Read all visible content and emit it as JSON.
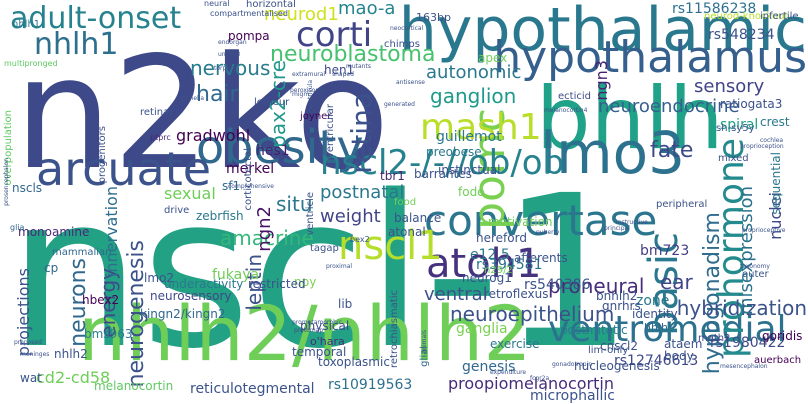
{
  "words": [
    {
      "text": "nscl-1",
      "color": "#22a184"
    },
    {
      "text": "n2ko",
      "color": "#3e4989"
    },
    {
      "text": "nhlh2/nhlh2",
      "color": "#6ece58"
    },
    {
      "text": "bhlh",
      "color": "#1fa287"
    },
    {
      "text": "hypothalamic",
      "color": "#2a788e"
    },
    {
      "text": "hypothalamus",
      "color": "#355f8d"
    },
    {
      "text": "lmo3",
      "color": "#2c718e"
    },
    {
      "text": "obesity",
      "color": "#31688e"
    },
    {
      "text": "arcuate",
      "color": "#3b528b"
    },
    {
      "text": "convertase",
      "color": "#2b758e"
    },
    {
      "text": "pomc",
      "color": "#7ad151"
    },
    {
      "text": "atoh1",
      "color": "#46327e"
    },
    {
      "text": "nscl1",
      "color": "#b5de2b"
    },
    {
      "text": "nscl2-/-//ob/ob",
      "color": "#26828e"
    },
    {
      "text": "mash1",
      "color": "#b8de29"
    },
    {
      "text": "ventromedial",
      "color": "#2c728e"
    },
    {
      "text": "prohormone",
      "color": "#238a8d"
    },
    {
      "text": "adult-onset",
      "color": "#26828e"
    },
    {
      "text": "nhlh1",
      "color": "#2d708e"
    },
    {
      "text": "corti",
      "color": "#414487"
    },
    {
      "text": "basic",
      "color": "#2a788e"
    },
    {
      "text": "neuroblastoma",
      "color": "#48c16e"
    },
    {
      "text": "retina",
      "color": "#3b528b"
    },
    {
      "text": "hypogonadism",
      "color": "#2f6c8e"
    },
    {
      "text": "neuroepithelium",
      "color": "#3b528b"
    },
    {
      "text": "neurod1",
      "color": "#d0e11c"
    },
    {
      "text": "mao-a",
      "color": "#25848e"
    },
    {
      "text": "autonomic",
      "color": "#2a788e"
    },
    {
      "text": "neuroendocrine",
      "color": "#355f8d"
    },
    {
      "text": "nervous",
      "color": "#287c8e"
    },
    {
      "text": "hair",
      "color": "#31688e"
    },
    {
      "text": "ganglion",
      "color": "#1f9a8a"
    },
    {
      "text": "sensory",
      "color": "#414487"
    },
    {
      "text": "pax2-cre",
      "color": "#1f988b"
    },
    {
      "text": "amacrine",
      "color": "#35b779"
    },
    {
      "text": "weight",
      "color": "#414487"
    },
    {
      "text": "postnatal",
      "color": "#2a788e"
    },
    {
      "text": "proneural",
      "color": "#472d7b"
    },
    {
      "text": "energy",
      "color": "#3e4a89"
    },
    {
      "text": "neurons",
      "color": "#31688e"
    },
    {
      "text": "neurogenesis",
      "color": "#3b528b"
    },
    {
      "text": "leptin",
      "color": "#3b528b"
    },
    {
      "text": "situ",
      "color": "#2a788e"
    },
    {
      "text": "ngn2",
      "color": "#471365"
    },
    {
      "text": "ngn3",
      "color": "#482173"
    },
    {
      "text": "fate",
      "color": "#3e4989"
    },
    {
      "text": "ear",
      "color": "#414487"
    },
    {
      "text": "zone",
      "color": "#2a788e"
    },
    {
      "text": "ventral",
      "color": "#3b528b"
    },
    {
      "text": "hybridization",
      "color": "#3b528b"
    },
    {
      "text": "misexpression",
      "color": "#2c728e"
    },
    {
      "text": "nuclei",
      "color": "#3e4989"
    },
    {
      "text": "ganglia",
      "color": "#7ad151"
    },
    {
      "text": "sexual",
      "color": "#6ece58"
    },
    {
      "text": "projections",
      "color": "#3b528b"
    },
    {
      "text": "innervation",
      "color": "#2e6e8e"
    },
    {
      "text": "gradwohl",
      "color": "#440154"
    },
    {
      "text": "merkel",
      "color": "#440154"
    },
    {
      "text": "hes1",
      "color": "#481f70"
    },
    {
      "text": "e12.5",
      "color": "#2a788e"
    },
    {
      "text": "rs540386",
      "color": "#3b528b"
    },
    {
      "text": "rs394581",
      "color": "#2c718e"
    },
    {
      "text": "bm723",
      "color": "#433d84"
    },
    {
      "text": "rs11586238",
      "color": "#2d708e"
    },
    {
      "text": "rs548234",
      "color": "#3b528b"
    },
    {
      "text": "rs1980422",
      "color": "#3e4989"
    },
    {
      "text": "rs12746613",
      "color": "#3e4989"
    },
    {
      "text": "rs10919563",
      "color": "#2d708e"
    },
    {
      "text": "proopiomelanocortin",
      "color": "#472c7a"
    },
    {
      "text": "reticulotegmental",
      "color": "#3b528b"
    },
    {
      "text": "microphallic",
      "color": "#3b528b"
    },
    {
      "text": "genesis",
      "color": "#31688e"
    },
    {
      "text": "cd2-cd58",
      "color": "#6ece58"
    },
    {
      "text": "melanocortin",
      "color": "#5ec962"
    },
    {
      "text": "nhlh2",
      "color": "#3b528b"
    },
    {
      "text": "wat",
      "color": "#3b528b"
    },
    {
      "text": "bms963",
      "color": "#287d8e"
    },
    {
      "text": "kingn2/kingn2",
      "color": "#31688e"
    },
    {
      "text": "neurosensory",
      "color": "#3e4989"
    },
    {
      "text": "lmo2",
      "color": "#3b528b"
    },
    {
      "text": "fukaya",
      "color": "#6ece58"
    },
    {
      "text": "hbex2",
      "color": "#440154"
    },
    {
      "text": "cp",
      "color": "#31688e"
    },
    {
      "text": "monoamine",
      "color": "#482878"
    },
    {
      "text": "nscls",
      "color": "#31688e"
    },
    {
      "text": "zebrfish",
      "color": "#2a788e"
    },
    {
      "text": "sf1",
      "color": "#31688e"
    },
    {
      "text": "tbr1",
      "color": "#482475"
    },
    {
      "text": "neurog1",
      "color": "#3b528b"
    },
    {
      "text": "hereford",
      "color": "#3b528b"
    },
    {
      "text": "physical",
      "color": "#3e4989"
    },
    {
      "text": "lib",
      "color": "#3b528b"
    },
    {
      "text": "npy",
      "color": "#7ad151"
    },
    {
      "text": "temporal",
      "color": "#3b528b"
    },
    {
      "text": "o'hara",
      "color": "#472d7b"
    },
    {
      "text": "exercise",
      "color": "#2a788e"
    },
    {
      "text": "postmitotic",
      "color": "#2a788e"
    },
    {
      "text": "ataem",
      "color": "#3b528b"
    },
    {
      "text": "hhlh",
      "color": "#31688e"
    },
    {
      "text": "body",
      "color": "#3b528b"
    },
    {
      "text": "goridis",
      "color": "#440154"
    },
    {
      "text": "auerbach",
      "color": "#440154"
    },
    {
      "text": "spiral",
      "color": "#1fa188"
    },
    {
      "text": "ratiogata3",
      "color": "#3b528b"
    },
    {
      "text": "crest",
      "color": "#2a788e"
    },
    {
      "text": "sequential",
      "color": "#2a788e"
    },
    {
      "text": "identity",
      "color": "#3b528b"
    },
    {
      "text": "gnrhrs",
      "color": "#3b528b"
    },
    {
      "text": "cnscl2",
      "color": "#3b528b"
    },
    {
      "text": "bnhlh2",
      "color": "#3b528b"
    },
    {
      "text": "ecticid",
      "color": "#3e4989"
    },
    {
      "text": "guillemot",
      "color": "#2a788e"
    },
    {
      "text": "preobese",
      "color": "#2a788e"
    },
    {
      "text": "instinctual",
      "color": "#3b528b"
    },
    {
      "text": "barrantes",
      "color": "#3b528b"
    },
    {
      "text": "balance",
      "color": "#3b528b"
    },
    {
      "text": "atonal",
      "color": "#3b528b"
    },
    {
      "text": "163bp",
      "color": "#3b528b"
    },
    {
      "text": "pompa",
      "color": "#440154"
    },
    {
      "text": "underactivity",
      "color": "#2a788e"
    },
    {
      "text": "restricted",
      "color": "#3b528b"
    },
    {
      "text": "toxoplasmic",
      "color": "#3b528b"
    },
    {
      "text": "motivation",
      "color": "#6ece58"
    },
    {
      "text": "afferents",
      "color": "#3b528b"
    },
    {
      "text": "retroflexus",
      "color": "#3b528b"
    },
    {
      "text": "mixed",
      "color": "#3b528b"
    },
    {
      "text": "outer",
      "color": "#3b528b"
    },
    {
      "text": "peripheral",
      "color": "#3b528b"
    },
    {
      "text": "nucleogenesis",
      "color": "#3b528b"
    },
    {
      "text": "lim-only",
      "color": "#3b528b"
    },
    {
      "text": "food",
      "color": "#6ece58"
    },
    {
      "text": "fode",
      "color": "#6ece58"
    },
    {
      "text": "apex",
      "color": "#6ece58"
    },
    {
      "text": "hen1",
      "color": "#3e4989"
    },
    {
      "text": "chimps",
      "color": "#3b528b"
    },
    {
      "text": "progenitors",
      "color": "#3b528b"
    },
    {
      "text": "retinal",
      "color": "#3b528b"
    },
    {
      "text": "ptprc",
      "color": "#482878"
    },
    {
      "text": "overpopulation",
      "color": "#5ec962"
    },
    {
      "text": "joyner",
      "color": "#440154"
    },
    {
      "text": "lemeur",
      "color": "#3b528b"
    },
    {
      "text": "ventricular",
      "color": "#3b528b"
    },
    {
      "text": "ventricle",
      "color": "#3b528b"
    },
    {
      "text": "drive",
      "color": "#3b528b"
    },
    {
      "text": "mammalian",
      "color": "#31688e"
    },
    {
      "text": "glia",
      "color": "#31688e"
    },
    {
      "text": "math2",
      "color": "#3e4989"
    },
    {
      "text": "glial",
      "color": "#31688e"
    },
    {
      "text": "n29/2",
      "color": "#6ece58"
    },
    {
      "text": "tagap",
      "color": "#3b528b"
    },
    {
      "text": "nhlh1",
      "color": "#2a788e"
    },
    {
      "text": "sh-sy5y",
      "color": "#3b528b"
    },
    {
      "text": "horizontal",
      "color": "#3b528b"
    },
    {
      "text": "neural",
      "color": "#3b528b"
    },
    {
      "text": "compartmentalised",
      "color": "#3b528b"
    },
    {
      "text": "neurod-knockout",
      "color": "#b8de29"
    },
    {
      "text": "infertile",
      "color": "#3b528b"
    },
    {
      "text": "retrochiasmatic",
      "color": "#3b528b"
    },
    {
      "text": "corticotectal",
      "color": "#3b528b"
    },
    {
      "text": "prosencephalon",
      "color": "#3b528b"
    },
    {
      "text": "proposed",
      "color": "#3b528b"
    },
    {
      "text": "meninges",
      "color": "#3b528b"
    },
    {
      "text": "proprioceptive",
      "color": "#3b528b"
    },
    {
      "text": "epithelia",
      "color": "#3b528b"
    },
    {
      "text": "comprehensive",
      "color": "#3b528b"
    },
    {
      "text": "puberty",
      "color": "#3b528b"
    },
    {
      "text": "expenditure",
      "color": "#3b528b"
    },
    {
      "text": "animals",
      "color": "#3b528b"
    },
    {
      "text": "gonadotropin",
      "color": "#3b528b"
    },
    {
      "text": "instructive",
      "color": "#3b528b"
    },
    {
      "text": "principal",
      "color": "#3b528b"
    },
    {
      "text": "fcgr2a",
      "color": "#3b528b"
    },
    {
      "text": "mutants",
      "color": "#3b528b"
    },
    {
      "text": "peroxisome",
      "color": "#3b528b"
    },
    {
      "text": "neocortical",
      "color": "#3b528b"
    },
    {
      "text": "endorgan",
      "color": "#3b528b"
    },
    {
      "text": "torpor",
      "color": "#3b528b"
    },
    {
      "text": "multipronged",
      "color": "#5ec962"
    },
    {
      "text": "extramural",
      "color": "#3b528b"
    },
    {
      "text": "ventricula",
      "color": "#3b528b"
    },
    {
      "text": "shaped",
      "color": "#3b528b"
    },
    {
      "text": "migm",
      "color": "#3b528b"
    },
    {
      "text": "prometamorphic",
      "color": "#3b528b"
    },
    {
      "text": "protomap",
      "color": "#3b528b"
    },
    {
      "text": "proximal",
      "color": "#3b528b"
    },
    {
      "text": "generated",
      "color": "#3b528b"
    },
    {
      "text": "unc5h3",
      "color": "#3b528b"
    },
    {
      "text": "bex2",
      "color": "#3b528b"
    },
    {
      "text": "melanocortin4",
      "color": "#3b528b"
    },
    {
      "text": "mesencephalon",
      "color": "#3b528b"
    },
    {
      "text": "antisense",
      "color": "#3b528b"
    },
    {
      "text": "proprioception",
      "color": "#3b528b"
    },
    {
      "text": "cochlea",
      "color": "#3b528b"
    },
    {
      "text": "taxonomy",
      "color": "#3b528b"
    }
  ]
}
